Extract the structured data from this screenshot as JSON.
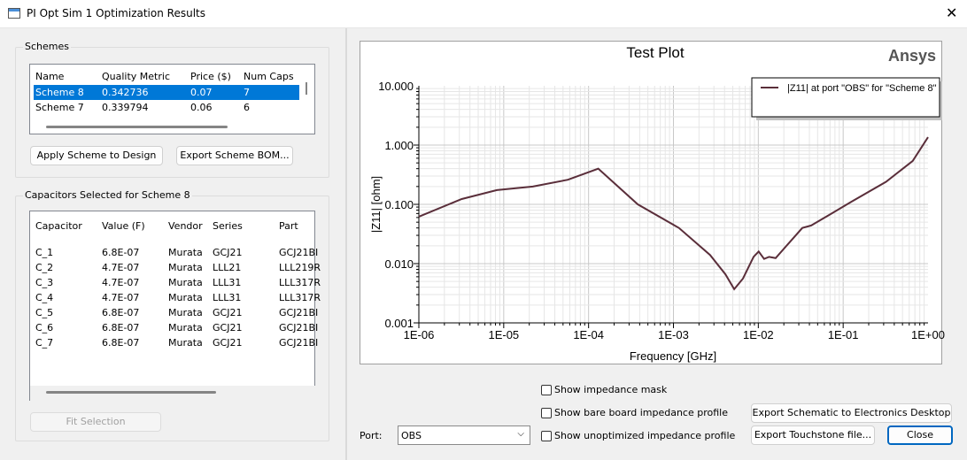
{
  "window": {
    "title": "PI Opt Sim 1 Optimization Results",
    "close_icon": "close-icon"
  },
  "schemes": {
    "group_label": "Schemes",
    "columns": [
      "Name",
      "Quality Metric",
      "Price ($)",
      "Num Caps"
    ],
    "rows": [
      [
        "Scheme 8",
        "0.342736",
        "0.07",
        "7"
      ],
      [
        "Scheme 7",
        "0.339794",
        "0.06",
        "6"
      ]
    ],
    "selected": 0,
    "apply_label": "Apply Scheme to Design",
    "export_bom_label": "Export Scheme BOM..."
  },
  "capacitors": {
    "group_label": "Capacitors Selected for Scheme 8",
    "columns": [
      "Capacitor",
      "Value (F)",
      "Vendor",
      "Series",
      "Part"
    ],
    "rows": [
      [
        "C_1",
        "6.8E-07",
        "Murata",
        "GCJ21",
        "GCJ21BI"
      ],
      [
        "C_2",
        "4.7E-07",
        "Murata",
        "LLL21",
        "LLL219R"
      ],
      [
        "C_3",
        "4.7E-07",
        "Murata",
        "LLL31",
        "LLL317R"
      ],
      [
        "C_4",
        "4.7E-07",
        "Murata",
        "LLL31",
        "LLL317R"
      ],
      [
        "C_5",
        "6.8E-07",
        "Murata",
        "GCJ21",
        "GCJ21BI"
      ],
      [
        "C_6",
        "6.8E-07",
        "Murata",
        "GCJ21",
        "GCJ21BI"
      ],
      [
        "C_7",
        "6.8E-07",
        "Murata",
        "GCJ21",
        "GCJ21BI"
      ]
    ],
    "fit_label": "Fit Selection"
  },
  "chart_data": {
    "type": "line",
    "title": "Test Plot",
    "brand": "Ansys",
    "xlabel": "Frequency [GHz]",
    "ylabel": "|Z11| [ohm]",
    "xscale": "log",
    "yscale": "log",
    "xlim": [
      1e-06,
      1
    ],
    "ylim": [
      0.001,
      10
    ],
    "xticks": [
      "1E-06",
      "1E-05",
      "1E-04",
      "1E-03",
      "1E-02",
      "1E-01",
      "1E+00"
    ],
    "yticks": [
      "0.001",
      "0.010",
      "0.100",
      "1.000",
      "10.000"
    ],
    "grid": true,
    "legend_position": "top-right",
    "series": [
      {
        "name": "|Z11| at port \"OBS\" for \"Scheme 8\"",
        "color": "#5a2e3a",
        "x": [
          1e-06,
          3.2e-06,
          8.3e-06,
          2.2e-05,
          5.7e-05,
          0.00013,
          0.00038,
          0.00116,
          0.0027,
          0.0041,
          0.0052,
          0.0066,
          0.0088,
          0.0101,
          0.0117,
          0.0134,
          0.016,
          0.0228,
          0.033,
          0.042,
          0.068,
          0.124,
          0.32,
          0.66,
          1.0
        ],
        "y": [
          0.062,
          0.123,
          0.174,
          0.2,
          0.26,
          0.4,
          0.1,
          0.04,
          0.014,
          0.0066,
          0.0037,
          0.0056,
          0.013,
          0.016,
          0.012,
          0.013,
          0.0124,
          0.022,
          0.04,
          0.044,
          0.066,
          0.11,
          0.24,
          0.54,
          1.36
        ]
      }
    ]
  },
  "options": {
    "mask_label": "Show impedance mask",
    "bare_label": "Show bare board impedance profile",
    "unopt_label": "Show unoptimized impedance profile",
    "port_label": "Port:",
    "port_value": "OBS"
  },
  "buttons": {
    "export_schematic": "Export Schematic to Electronics Desktop",
    "export_touchstone": "Export Touchstone file...",
    "close": "Close"
  }
}
